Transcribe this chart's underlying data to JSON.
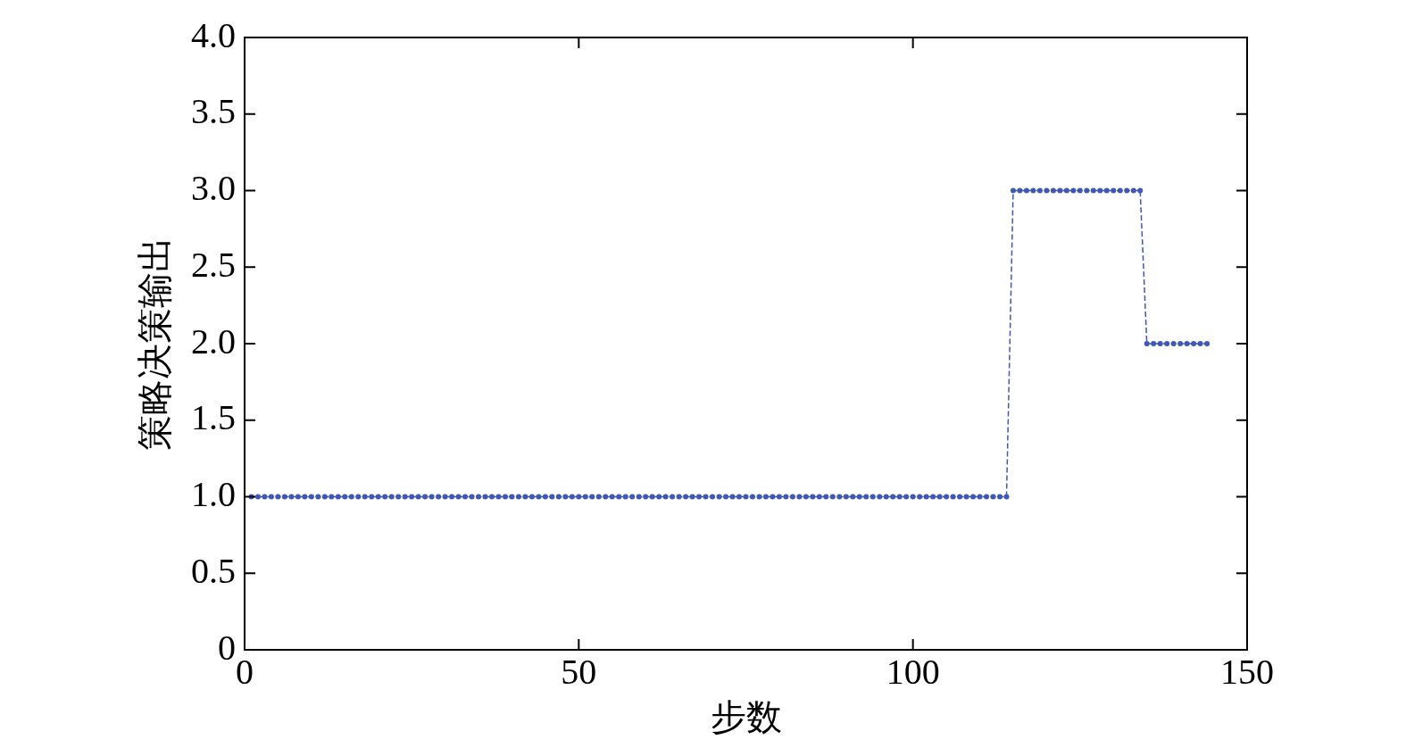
{
  "chart_data": {
    "type": "line",
    "xlabel": "步数",
    "ylabel": "策略决策输出",
    "xlim": [
      0,
      150
    ],
    "xticks": [
      0,
      50,
      100,
      150
    ],
    "ylim": [
      0,
      4
    ],
    "yticks": [
      {
        "value": 0,
        "label": "0"
      },
      {
        "value": 0.5,
        "label": "0.5"
      },
      {
        "value": 1,
        "label": "1.0"
      },
      {
        "value": 1.5,
        "label": "1.5"
      },
      {
        "value": 2,
        "label": "2.0"
      },
      {
        "value": 2.5,
        "label": "2.5"
      },
      {
        "value": 3,
        "label": "3.0"
      },
      {
        "value": 3.5,
        "label": "3.5"
      },
      {
        "value": 4,
        "label": "4.0"
      }
    ],
    "grid": false,
    "legend": false,
    "marker": "circle",
    "line_style": "dashed",
    "x": [
      1,
      2,
      3,
      4,
      5,
      6,
      7,
      8,
      9,
      10,
      11,
      12,
      13,
      14,
      15,
      16,
      17,
      18,
      19,
      20,
      21,
      22,
      23,
      24,
      25,
      26,
      27,
      28,
      29,
      30,
      31,
      32,
      33,
      34,
      35,
      36,
      37,
      38,
      39,
      40,
      41,
      42,
      43,
      44,
      45,
      46,
      47,
      48,
      49,
      50,
      51,
      52,
      53,
      54,
      55,
      56,
      57,
      58,
      59,
      60,
      61,
      62,
      63,
      64,
      65,
      66,
      67,
      68,
      69,
      70,
      71,
      72,
      73,
      74,
      75,
      76,
      77,
      78,
      79,
      80,
      81,
      82,
      83,
      84,
      85,
      86,
      87,
      88,
      89,
      90,
      91,
      92,
      93,
      94,
      95,
      96,
      97,
      98,
      99,
      100,
      101,
      102,
      103,
      104,
      105,
      106,
      107,
      108,
      109,
      110,
      111,
      112,
      113,
      114,
      115,
      116,
      117,
      118,
      119,
      120,
      121,
      122,
      123,
      124,
      125,
      126,
      127,
      128,
      129,
      130,
      131,
      132,
      133,
      134,
      135,
      136,
      137,
      138,
      139,
      140,
      141,
      142,
      143,
      144
    ],
    "series": [
      {
        "color": "#3f58b5",
        "values": [
          1,
          1,
          1,
          1,
          1,
          1,
          1,
          1,
          1,
          1,
          1,
          1,
          1,
          1,
          1,
          1,
          1,
          1,
          1,
          1,
          1,
          1,
          1,
          1,
          1,
          1,
          1,
          1,
          1,
          1,
          1,
          1,
          1,
          1,
          1,
          1,
          1,
          1,
          1,
          1,
          1,
          1,
          1,
          1,
          1,
          1,
          1,
          1,
          1,
          1,
          1,
          1,
          1,
          1,
          1,
          1,
          1,
          1,
          1,
          1,
          1,
          1,
          1,
          1,
          1,
          1,
          1,
          1,
          1,
          1,
          1,
          1,
          1,
          1,
          1,
          1,
          1,
          1,
          1,
          1,
          1,
          1,
          1,
          1,
          1,
          1,
          1,
          1,
          1,
          1,
          1,
          1,
          1,
          1,
          1,
          1,
          1,
          1,
          1,
          1,
          1,
          1,
          1,
          1,
          1,
          1,
          1,
          1,
          1,
          1,
          1,
          1,
          1,
          1,
          3,
          3,
          3,
          3,
          3,
          3,
          3,
          3,
          3,
          3,
          3,
          3,
          3,
          3,
          3,
          3,
          3,
          3,
          3,
          3,
          2,
          2,
          2,
          2,
          2,
          2,
          2,
          2,
          2,
          2
        ]
      }
    ]
  }
}
